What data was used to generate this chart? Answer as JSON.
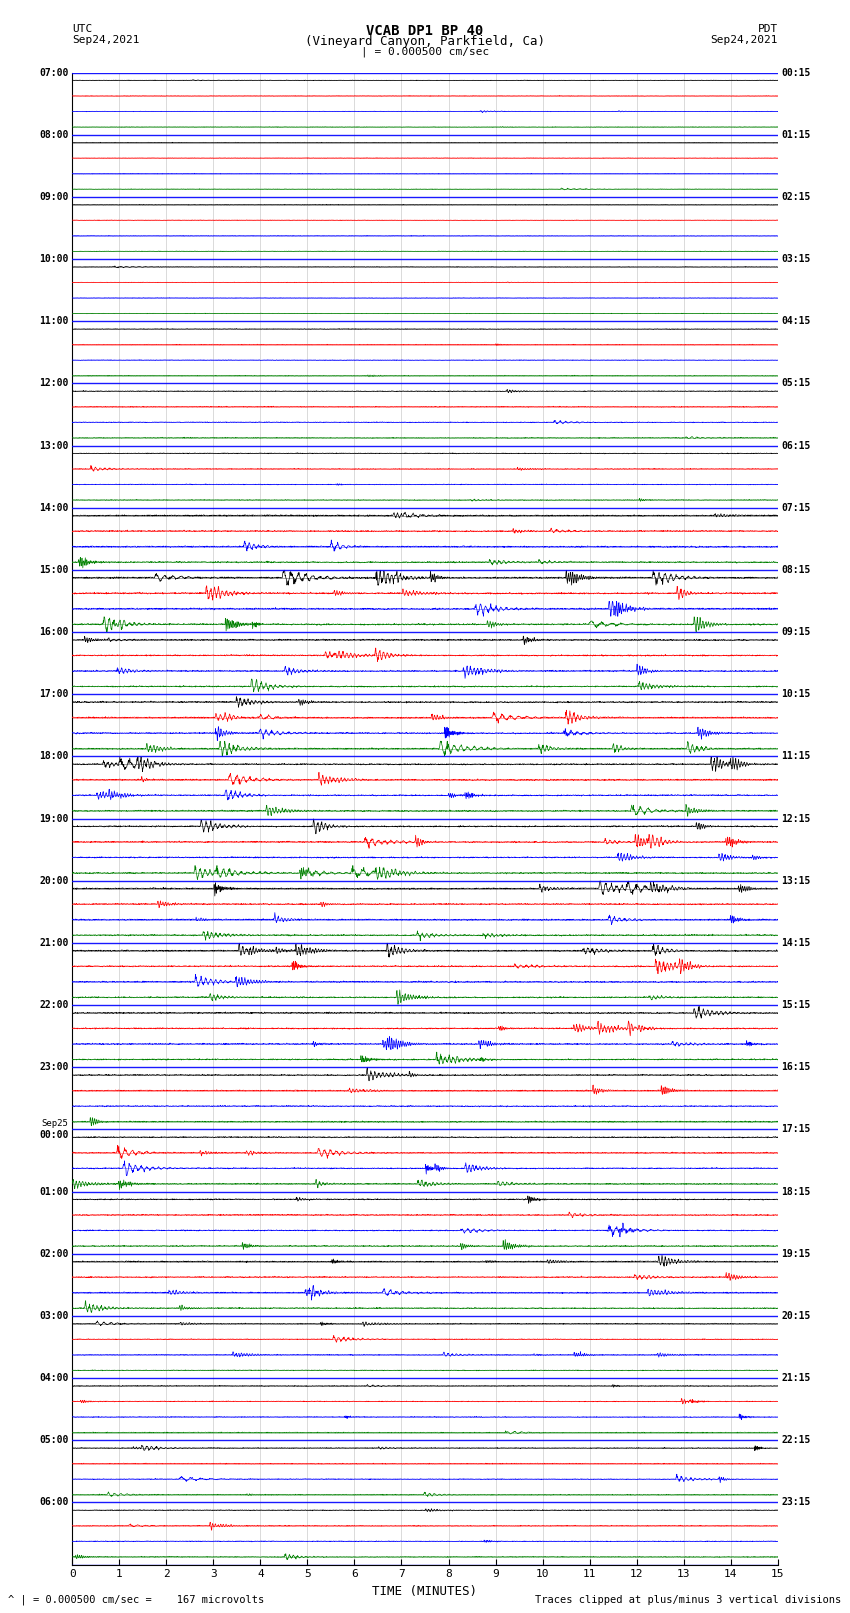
{
  "title_line1": "VCAB DP1 BP 40",
  "title_line2": "(Vineyard Canyon, Parkfield, Ca)",
  "left_label_top": "UTC",
  "left_label_date": "Sep24,2021",
  "right_label_top": "PDT",
  "right_label_date": "Sep24,2021",
  "scale_text": "| = 0.000500 cm/sec",
  "footer_left": "^ | = 0.000500 cm/sec =    167 microvolts",
  "footer_right": "Traces clipped at plus/minus 3 vertical divisions",
  "xlabel": "TIME (MINUTES)",
  "xmin": 0,
  "xmax": 15,
  "xticks": [
    0,
    1,
    2,
    3,
    4,
    5,
    6,
    7,
    8,
    9,
    10,
    11,
    12,
    13,
    14,
    15
  ],
  "background_color": "#ffffff",
  "trace_colors": [
    "black",
    "red",
    "blue",
    "green"
  ],
  "num_hour_groups": 24,
  "traces_per_group": 4,
  "left_times": [
    "07:00",
    "08:00",
    "09:00",
    "10:00",
    "11:00",
    "12:00",
    "13:00",
    "14:00",
    "15:00",
    "16:00",
    "17:00",
    "18:00",
    "19:00",
    "20:00",
    "21:00",
    "22:00",
    "23:00",
    "Sep25\n00:00",
    "01:00",
    "02:00",
    "03:00",
    "04:00",
    "05:00",
    "06:00"
  ],
  "right_times": [
    "00:15",
    "01:15",
    "02:15",
    "03:15",
    "04:15",
    "05:15",
    "06:15",
    "07:15",
    "08:15",
    "09:15",
    "10:15",
    "11:15",
    "12:15",
    "13:15",
    "14:15",
    "15:15",
    "16:15",
    "17:15",
    "18:15",
    "19:15",
    "20:15",
    "21:15",
    "22:15",
    "23:15"
  ]
}
